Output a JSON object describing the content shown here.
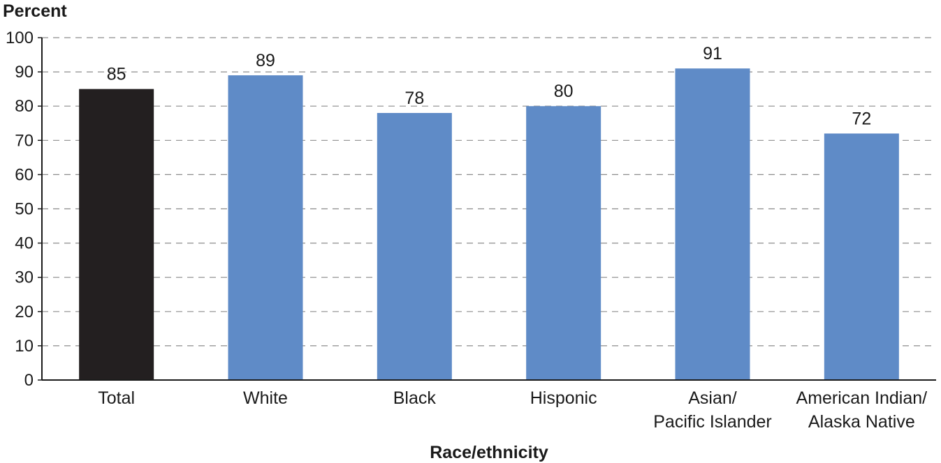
{
  "chart_data": {
    "type": "bar",
    "title": "",
    "ylabel": "Percent",
    "xlabel": "Race/ethnicity",
    "ylim": [
      0,
      100
    ],
    "yticks": [
      0,
      10,
      20,
      30,
      40,
      50,
      60,
      70,
      80,
      90,
      100
    ],
    "grid": "horizontal dashed",
    "categories": [
      [
        "Total"
      ],
      [
        "White"
      ],
      [
        "Black"
      ],
      [
        "Hisponic"
      ],
      [
        "Asian/",
        "Pacific Islander"
      ],
      [
        "American Indian/",
        "Alaska Native"
      ]
    ],
    "values": [
      85,
      89,
      78,
      80,
      91,
      72
    ],
    "data_labels": [
      "85",
      "89",
      "78",
      "80",
      "91",
      "72"
    ],
    "colors": [
      "#231f20",
      "#5f8bc7",
      "#5f8bc7",
      "#5f8bc7",
      "#5f8bc7",
      "#5f8bc7"
    ]
  }
}
